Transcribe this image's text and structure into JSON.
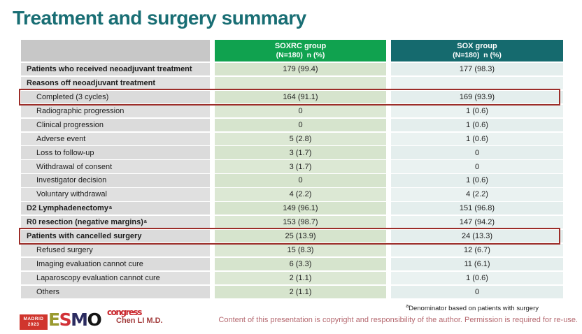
{
  "slide": {
    "title": "Treatment and surgery summary",
    "colors": {
      "title_teal": "#196E74",
      "header_green": "#10A24F",
      "header_teal": "#156A6E",
      "highlight_red": "#9C2D29"
    }
  },
  "table": {
    "header": {
      "soxrc_name": "SOXRC group",
      "soxrc_sub": "(N=180)  n (%)",
      "sox_name": "SOX group",
      "sox_sub": "(N=180)  n (%)"
    },
    "rows": [
      {
        "label": "Patients who received neoadjuvant treatment",
        "style": "section",
        "soxrc": "179 (99.4)",
        "sox": "177 (98.3)",
        "highlight": false
      },
      {
        "label": "Reasons off neoadjuvant treatment",
        "style": "section",
        "soxrc": "",
        "sox": "",
        "highlight": false
      },
      {
        "label": "Completed (3 cycles)",
        "style": "sub",
        "soxrc": "164 (91.1)",
        "sox": "169 (93.9)",
        "highlight": true
      },
      {
        "label": "Radiographic progression",
        "style": "sub",
        "soxrc": "0",
        "sox": "1 (0.6)",
        "highlight": false
      },
      {
        "label": "Clinical progression",
        "style": "sub",
        "soxrc": "0",
        "sox": "1 (0.6)",
        "highlight": false
      },
      {
        "label": "Adverse event",
        "style": "sub",
        "soxrc": "5 (2.8)",
        "sox": "1 (0.6)",
        "highlight": false
      },
      {
        "label": "Loss to follow-up",
        "style": "sub",
        "soxrc": "3 (1.7)",
        "sox": "0",
        "highlight": false
      },
      {
        "label": "Withdrawal of consent",
        "style": "sub",
        "soxrc": "3 (1.7)",
        "sox": "0",
        "highlight": false
      },
      {
        "label": "Investigator decision",
        "style": "sub",
        "soxrc": "0",
        "sox": "1 (0.6)",
        "highlight": false
      },
      {
        "label": "Voluntary withdrawal",
        "style": "sub",
        "soxrc": "4 (2.2)",
        "sox": "4 (2.2)",
        "highlight": false
      },
      {
        "label": "D2 Lymphadenectomy",
        "sup": "a",
        "style": "section",
        "soxrc": "149 (96.1)",
        "sox": "151 (96.8)",
        "highlight": false
      },
      {
        "label": "R0 resection (negative margins)",
        "sup": "a",
        "style": "section",
        "soxrc": "153 (98.7)",
        "sox": "147 (94.2)",
        "highlight": false
      },
      {
        "label": "Patients with cancelled surgery",
        "style": "section",
        "soxrc": "25 (13.9)",
        "sox": "24 (13.3)",
        "highlight": true
      },
      {
        "label": "Refused surgery",
        "style": "sub",
        "soxrc": "15 (8.3)",
        "sox": "12 (6.7)",
        "highlight": false
      },
      {
        "label": "Imaging evaluation cannot cure",
        "style": "sub",
        "soxrc": "6 (3.3)",
        "sox": "11 (6.1)",
        "highlight": false
      },
      {
        "label": "Laparoscopy evaluation cannot cure",
        "style": "sub",
        "soxrc": "2 (1.1)",
        "sox": "1 (0.6)",
        "highlight": false
      },
      {
        "label": "Others",
        "style": "sub",
        "soxrc": "2 (1.1)",
        "sox": "0",
        "highlight": false
      }
    ]
  },
  "footnote": {
    "sup": "a",
    "text": "Denominator based on patients with surgery"
  },
  "footer": {
    "madrid_line1": "MADRID",
    "madrid_line2": "2023",
    "esmo_letters": [
      "E",
      "S",
      "M",
      "O"
    ],
    "congress": "congress",
    "presenter": "Chen LI M.D.",
    "copyright": "Content of this presentation is copyright and responsibility of the author. Permission is required for re-use."
  }
}
